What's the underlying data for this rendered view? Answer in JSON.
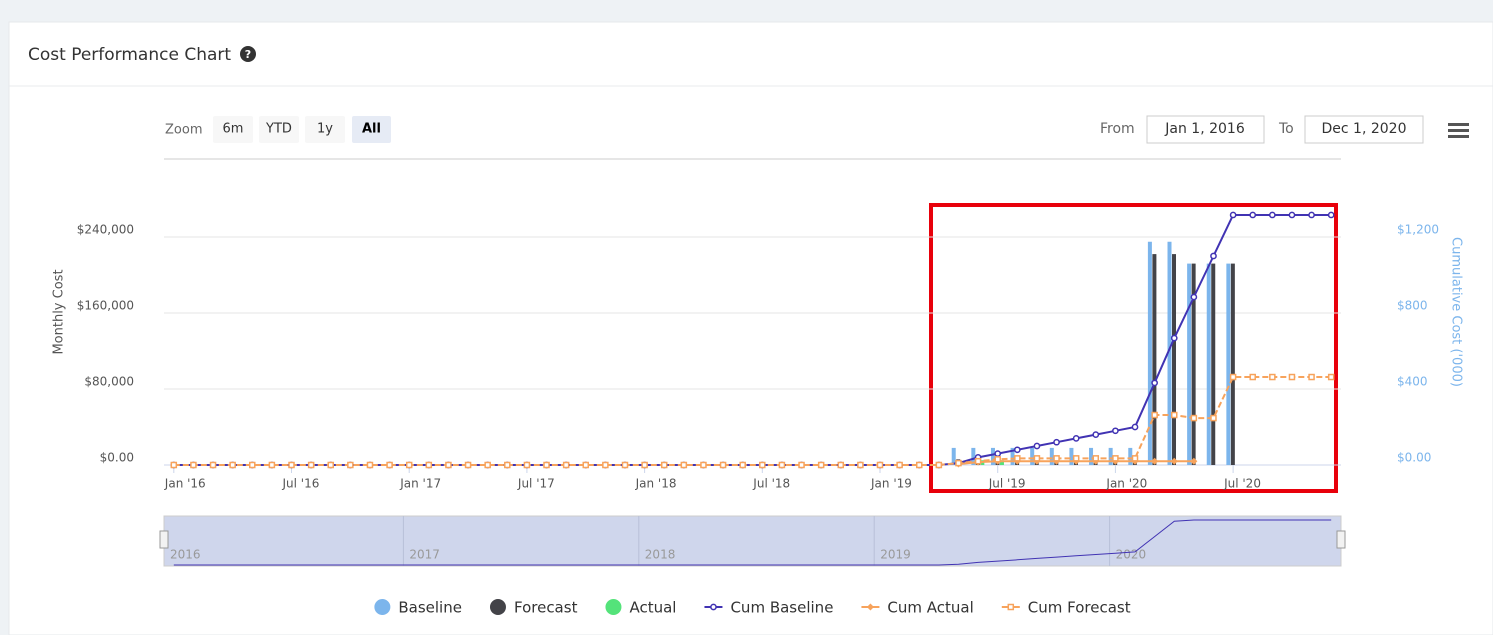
{
  "header": {
    "title": "Cost Performance Chart"
  },
  "range_selector": {
    "zoom_label": "Zoom",
    "buttons": [
      "6m",
      "YTD",
      "1y",
      "All"
    ],
    "selected": "All",
    "from_label": "From",
    "from": "Jan 1, 2016",
    "to_label": "To",
    "to": "Dec 1, 2020"
  },
  "chart_data": {
    "type": "combo",
    "y_label": "Monthly Cost",
    "y2_label": "Cumulative Cost ('000)",
    "categories": [
      "Jan '16",
      null,
      null,
      null,
      null,
      null,
      "Jul '16",
      null,
      null,
      null,
      null,
      null,
      "Jan '17",
      null,
      null,
      null,
      null,
      null,
      "Jul '17",
      null,
      null,
      null,
      null,
      null,
      "Jan '18",
      null,
      null,
      null,
      null,
      null,
      "Jul '18",
      null,
      null,
      null,
      null,
      null,
      "Jan '19",
      null,
      null,
      null,
      null,
      null,
      "Jul '19",
      null,
      null,
      null,
      null,
      null,
      "Jan '20",
      null,
      null,
      null,
      null,
      null,
      "Jul '20",
      null,
      null,
      null,
      null,
      null
    ],
    "ylim": [
      0,
      320000
    ],
    "yticks": [
      {
        "value": 0,
        "label": "$0.00"
      },
      {
        "value": 80000,
        "label": "$80,000"
      },
      {
        "value": 160000,
        "label": "$160,000"
      },
      {
        "value": 240000,
        "label": "$240,000"
      }
    ],
    "y2lim": [
      0,
      1600
    ],
    "y2ticks": [
      {
        "value": 0,
        "label": "$0.00"
      },
      {
        "value": 400,
        "label": "$400"
      },
      {
        "value": 800,
        "label": "$800"
      },
      {
        "value": 1200,
        "label": "$1,200"
      }
    ],
    "grid": true,
    "series": [
      {
        "name": "Baseline",
        "type": "column",
        "color": "#7cb5ec",
        "values": [
          null,
          null,
          null,
          null,
          null,
          null,
          null,
          null,
          null,
          null,
          null,
          null,
          null,
          null,
          null,
          null,
          null,
          null,
          null,
          null,
          null,
          null,
          null,
          null,
          null,
          null,
          null,
          null,
          null,
          null,
          null,
          null,
          null,
          null,
          null,
          null,
          null,
          null,
          null,
          null,
          18000,
          18000,
          18000,
          18000,
          18000,
          18000,
          18000,
          18000,
          18000,
          18000,
          235000,
          235000,
          212000,
          212000,
          212000,
          null,
          null,
          null,
          null,
          null
        ]
      },
      {
        "name": "Forecast",
        "type": "column",
        "color": "#434348",
        "values": [
          null,
          null,
          null,
          null,
          null,
          null,
          null,
          null,
          null,
          null,
          null,
          null,
          null,
          null,
          null,
          null,
          null,
          null,
          null,
          null,
          null,
          null,
          null,
          null,
          null,
          null,
          null,
          null,
          null,
          null,
          null,
          null,
          null,
          null,
          null,
          null,
          null,
          null,
          null,
          null,
          6000,
          6000,
          6000,
          6000,
          6000,
          6000,
          6000,
          6000,
          6000,
          6000,
          222000,
          222000,
          212000,
          212000,
          212000,
          null,
          null,
          null,
          null,
          null
        ]
      },
      {
        "name": "Actual",
        "type": "column",
        "color": "#54e37a",
        "values": [
          null,
          null,
          null,
          null,
          null,
          null,
          null,
          null,
          null,
          null,
          null,
          null,
          null,
          null,
          null,
          null,
          null,
          null,
          null,
          null,
          null,
          null,
          null,
          null,
          null,
          null,
          null,
          null,
          null,
          null,
          null,
          null,
          null,
          null,
          null,
          null,
          null,
          null,
          null,
          null,
          null,
          5000,
          5000,
          null,
          null,
          null,
          null,
          null,
          null,
          null,
          null,
          null,
          null,
          null,
          null,
          null,
          null,
          null,
          null,
          null
        ]
      },
      {
        "name": "Cum Baseline",
        "type": "line",
        "axis": "y2",
        "color": "#4133b3",
        "marker": "circle",
        "values": [
          0,
          0,
          0,
          0,
          0,
          0,
          0,
          0,
          0,
          0,
          0,
          0,
          0,
          0,
          0,
          0,
          0,
          0,
          0,
          0,
          0,
          0,
          0,
          0,
          0,
          0,
          0,
          0,
          0,
          0,
          0,
          0,
          0,
          0,
          0,
          0,
          0,
          0,
          0,
          0,
          10,
          40,
          60,
          80,
          100,
          120,
          140,
          160,
          180,
          200,
          432,
          668,
          884,
          1100,
          1316,
          1316,
          1316,
          1316,
          1316,
          1316
        ]
      },
      {
        "name": "Cum Actual",
        "type": "line",
        "axis": "y2",
        "color": "#f7a35c",
        "marker": "diamond",
        "values": [
          null,
          null,
          null,
          null,
          null,
          null,
          null,
          null,
          null,
          null,
          null,
          null,
          null,
          null,
          null,
          null,
          null,
          null,
          null,
          null,
          null,
          null,
          null,
          null,
          null,
          null,
          null,
          null,
          null,
          null,
          null,
          null,
          null,
          null,
          null,
          null,
          null,
          null,
          null,
          null,
          5,
          15,
          20,
          20,
          20,
          20,
          20,
          20,
          20,
          20,
          20,
          20,
          20,
          null,
          null,
          null,
          null,
          null,
          null,
          null
        ]
      },
      {
        "name": "Cum Forecast",
        "type": "line",
        "axis": "y2",
        "color": "#f7a35c",
        "marker": "square",
        "dash": true,
        "values": [
          0,
          0,
          0,
          0,
          0,
          0,
          0,
          0,
          0,
          0,
          0,
          0,
          0,
          0,
          0,
          0,
          0,
          0,
          0,
          0,
          0,
          0,
          0,
          0,
          0,
          0,
          0,
          0,
          0,
          0,
          0,
          0,
          0,
          0,
          0,
          0,
          0,
          0,
          0,
          0,
          10,
          20,
          30,
          35,
          35,
          35,
          35,
          35,
          35,
          35,
          263,
          263,
          247,
          247,
          463,
          463,
          463,
          463,
          463,
          463
        ]
      }
    ],
    "navigator": {
      "labels": [
        "2016",
        "2017",
        "2018",
        "2019",
        "2020"
      ]
    }
  }
}
